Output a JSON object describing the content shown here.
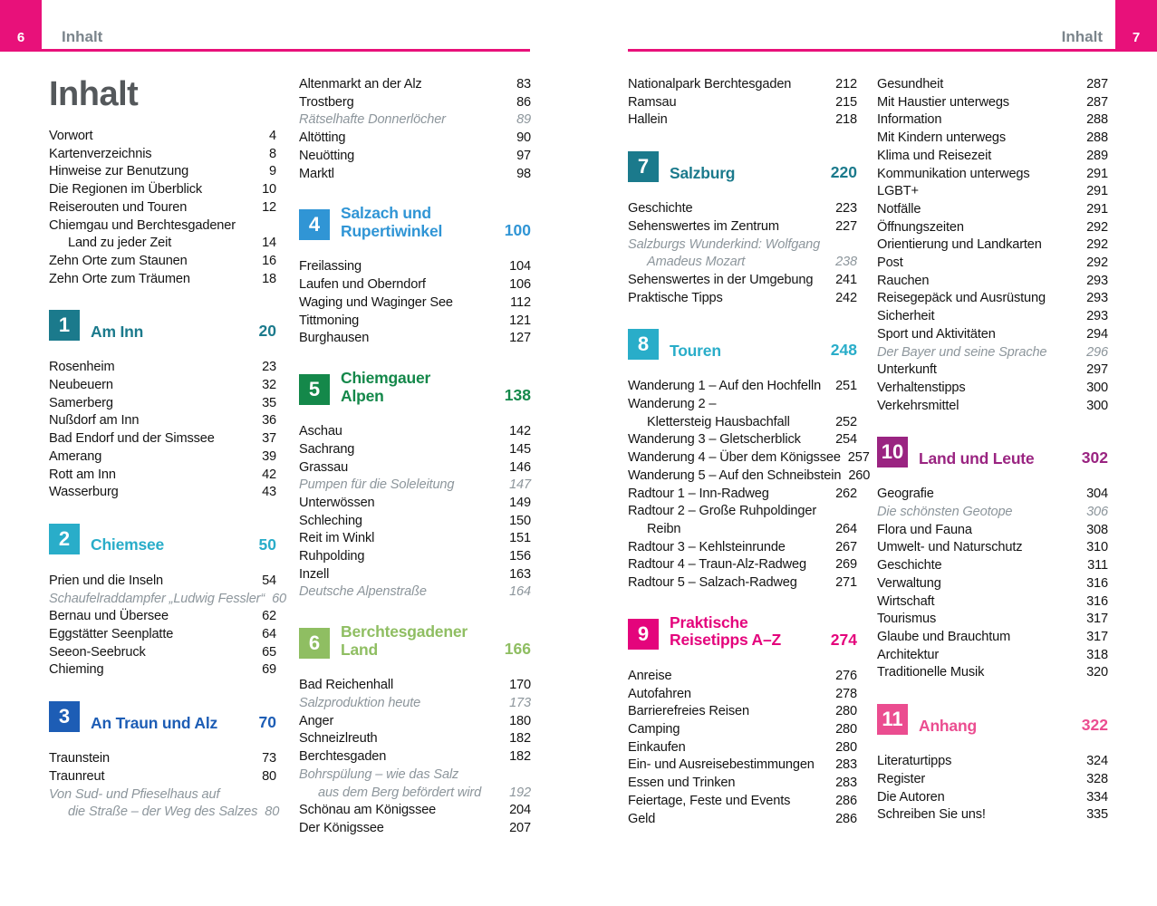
{
  "colors": {
    "accent": "#e8117a",
    "title_gray": "#54585b",
    "header_label_gray": "#7b858c",
    "body_text": "#141414",
    "muted_italic": "#8d969c"
  },
  "header": {
    "left": {
      "page_number": "6",
      "label": "Inhalt"
    },
    "right": {
      "page_number": "7",
      "label": "Inhalt"
    }
  },
  "title": "Inhalt",
  "columns": [
    {
      "blocks": [
        {
          "kind": "title",
          "text": "Inhalt"
        },
        {
          "kind": "entries",
          "rows": [
            {
              "label": "Vorwort",
              "page": "4"
            },
            {
              "label": "Kartenverzeichnis",
              "page": "8"
            },
            {
              "label": "Hinweise zur Benutzung",
              "page": "9"
            },
            {
              "label": "Die Regionen im Überblick",
              "page": "10"
            },
            {
              "label": "Reiserouten und Touren",
              "page": "12"
            },
            {
              "label": "Chiemgau und Berchtesgadener",
              "page": ""
            },
            {
              "label": "Land zu jeder Zeit",
              "page": "14",
              "indent": true
            },
            {
              "label": "Zehn Orte zum Staunen",
              "page": "16"
            },
            {
              "label": "Zehn Orte zum Träumen",
              "page": "18"
            }
          ]
        },
        {
          "kind": "chapter",
          "num": "1",
          "lines": [
            "Am Inn"
          ],
          "page": "20",
          "color": "#1b7a8c"
        },
        {
          "kind": "entries",
          "rows": [
            {
              "label": "Rosenheim",
              "page": "23"
            },
            {
              "label": "Neubeuern",
              "page": "32"
            },
            {
              "label": "Samerberg",
              "page": "35"
            },
            {
              "label": "Nußdorf am Inn",
              "page": "36"
            },
            {
              "label": "Bad Endorf und der Simssee",
              "page": "37"
            },
            {
              "label": "Amerang",
              "page": "39"
            },
            {
              "label": "Rott am Inn",
              "page": "42"
            },
            {
              "label": "Wasserburg",
              "page": "43"
            }
          ]
        },
        {
          "kind": "chapter",
          "num": "2",
          "lines": [
            "Chiemsee"
          ],
          "page": "50",
          "color": "#29adc9"
        },
        {
          "kind": "entries",
          "rows": [
            {
              "label": "Prien und die Inseln",
              "page": "54"
            },
            {
              "label": "Schaufelraddampfer „Ludwig Fessler“",
              "page": "60",
              "italic": true
            },
            {
              "label": "Bernau und Übersee",
              "page": "62"
            },
            {
              "label": "Eggstätter Seenplatte",
              "page": "64"
            },
            {
              "label": "Seeon-Seebruck",
              "page": "65"
            },
            {
              "label": "Chieming",
              "page": "69"
            }
          ]
        },
        {
          "kind": "chapter",
          "num": "3",
          "lines": [
            "An Traun und Alz"
          ],
          "page": "70",
          "color": "#1d5db5"
        },
        {
          "kind": "entries",
          "rows": [
            {
              "label": "Traunstein",
              "page": "73"
            },
            {
              "label": "Traunreut",
              "page": "80"
            },
            {
              "label": "Von Sud- und Pfieselhaus auf",
              "page": "",
              "italic": true
            },
            {
              "label": "die Straße – der Weg des Salzes",
              "page": "80",
              "italic": true,
              "indent": true
            }
          ]
        }
      ]
    },
    {
      "blocks": [
        {
          "kind": "entries",
          "rows": [
            {
              "label": "Altenmarkt an der Alz",
              "page": "83"
            },
            {
              "label": "Trostberg",
              "page": "86"
            },
            {
              "label": "Rätselhafte Donnerlöcher",
              "page": "89",
              "italic": true
            },
            {
              "label": "Altötting",
              "page": "90"
            },
            {
              "label": "Neuötting",
              "page": "97"
            },
            {
              "label": "Marktl",
              "page": "98"
            }
          ]
        },
        {
          "kind": "chapter",
          "num": "4",
          "lines": [
            "Salzach und",
            "Rupertiwinkel"
          ],
          "page": "100",
          "color": "#3095d5"
        },
        {
          "kind": "entries",
          "rows": [
            {
              "label": "Freilassing",
              "page": "104"
            },
            {
              "label": "Laufen und Oberndorf",
              "page": "106"
            },
            {
              "label": "Waging und Waginger See",
              "page": "112"
            },
            {
              "label": "Tittmoning",
              "page": "121"
            },
            {
              "label": "Burghausen",
              "page": "127"
            }
          ]
        },
        {
          "kind": "chapter",
          "num": "5",
          "lines": [
            "Chiemgauer",
            "Alpen"
          ],
          "page": "138",
          "color": "#14884a"
        },
        {
          "kind": "entries",
          "rows": [
            {
              "label": "Aschau",
              "page": "142"
            },
            {
              "label": "Sachrang",
              "page": "145"
            },
            {
              "label": "Grassau",
              "page": "146"
            },
            {
              "label": "Pumpen für die Soleleitung",
              "page": "147",
              "italic": true
            },
            {
              "label": "Unterwössen",
              "page": "149"
            },
            {
              "label": "Schleching",
              "page": "150"
            },
            {
              "label": "Reit im Winkl",
              "page": "151"
            },
            {
              "label": "Ruhpolding",
              "page": "156"
            },
            {
              "label": "Inzell",
              "page": "163"
            },
            {
              "label": "Deutsche Alpenstraße",
              "page": "164",
              "italic": true
            }
          ]
        },
        {
          "kind": "chapter",
          "num": "6",
          "lines": [
            "Berchtesgadener",
            "Land"
          ],
          "page": "166",
          "color": "#8fbe62"
        },
        {
          "kind": "entries",
          "rows": [
            {
              "label": "Bad Reichenhall",
              "page": "170"
            },
            {
              "label": "Salzproduktion heute",
              "page": "173",
              "italic": true
            },
            {
              "label": "Anger",
              "page": "180"
            },
            {
              "label": "Schneizlreuth",
              "page": "182"
            },
            {
              "label": "Berchtesgaden",
              "page": "182"
            },
            {
              "label": "Bohrspülung – wie das Salz",
              "page": "",
              "italic": true
            },
            {
              "label": "aus dem Berg befördert wird",
              "page": "192",
              "italic": true,
              "indent": true
            },
            {
              "label": "Schönau am Königssee",
              "page": "204"
            },
            {
              "label": "Der Königssee",
              "page": "207"
            }
          ]
        }
      ]
    },
    {
      "blocks": [
        {
          "kind": "entries",
          "rows": [
            {
              "label": "Nationalpark Berchtesgaden",
              "page": "212"
            },
            {
              "label": "Ramsau",
              "page": "215"
            },
            {
              "label": "Hallein",
              "page": "218"
            }
          ]
        },
        {
          "kind": "chapter",
          "num": "7",
          "lines": [
            "Salzburg"
          ],
          "page": "220",
          "color": "#1b7a8c"
        },
        {
          "kind": "entries",
          "rows": [
            {
              "label": "Geschichte",
              "page": "223"
            },
            {
              "label": "Sehenswertes im Zentrum",
              "page": "227"
            },
            {
              "label": "Salzburgs Wunderkind: Wolfgang",
              "page": "",
              "italic": true
            },
            {
              "label": "Amadeus Mozart",
              "page": "238",
              "italic": true,
              "indent": true
            },
            {
              "label": "Sehenswertes in der Umgebung",
              "page": "241"
            },
            {
              "label": "Praktische Tipps",
              "page": "242"
            }
          ]
        },
        {
          "kind": "chapter",
          "num": "8",
          "lines": [
            "Touren"
          ],
          "page": "248",
          "color": "#29adc9"
        },
        {
          "kind": "entries",
          "rows": [
            {
              "label": "Wanderung 1 – Auf den Hochfelln",
              "page": "251"
            },
            {
              "label": "Wanderung 2 –",
              "page": ""
            },
            {
              "label": "Klettersteig Hausbachfall",
              "page": "252",
              "indent": true
            },
            {
              "label": "Wanderung 3 – Gletscherblick",
              "page": "254"
            },
            {
              "label": "Wanderung 4 – Über dem Königssee",
              "page": "257"
            },
            {
              "label": "Wanderung 5 – Auf den Schneibstein",
              "page": "260"
            },
            {
              "label": "Radtour 1 – Inn-Radweg",
              "page": "262"
            },
            {
              "label": "Radtour 2 – Große Ruhpoldinger",
              "page": ""
            },
            {
              "label": "Reibn",
              "page": "264",
              "indent": true
            },
            {
              "label": "Radtour 3 – Kehlsteinrunde",
              "page": "267"
            },
            {
              "label": "Radtour 4 – Traun-Alz-Radweg",
              "page": "269"
            },
            {
              "label": "Radtour 5 – Salzach-Radweg",
              "page": "271"
            }
          ]
        },
        {
          "kind": "chapter",
          "num": "9",
          "lines": [
            "Praktische",
            "Reisetipps A–Z"
          ],
          "page": "274",
          "color": "#e4047c"
        },
        {
          "kind": "entries",
          "rows": [
            {
              "label": "Anreise",
              "page": "276"
            },
            {
              "label": "Autofahren",
              "page": "278"
            },
            {
              "label": "Barrierefreies Reisen",
              "page": "280"
            },
            {
              "label": "Camping",
              "page": "280"
            },
            {
              "label": "Einkaufen",
              "page": "280"
            },
            {
              "label": "Ein- und Ausreisebestimmungen",
              "page": "283"
            },
            {
              "label": "Essen und Trinken",
              "page": "283"
            },
            {
              "label": "Feiertage, Feste und Events",
              "page": "286"
            },
            {
              "label": "Geld",
              "page": "286"
            }
          ]
        }
      ]
    },
    {
      "blocks": [
        {
          "kind": "entries",
          "rows": [
            {
              "label": "Gesundheit",
              "page": "287"
            },
            {
              "label": "Mit Haustier unterwegs",
              "page": "287"
            },
            {
              "label": "Information",
              "page": "288"
            },
            {
              "label": "Mit Kindern unterwegs",
              "page": "288"
            },
            {
              "label": "Klima und Reisezeit",
              "page": "289"
            },
            {
              "label": "Kommunikation unterwegs",
              "page": "291"
            },
            {
              "label": "LGBT+",
              "page": "291"
            },
            {
              "label": "Notfälle",
              "page": "291"
            },
            {
              "label": "Öffnungszeiten",
              "page": "292"
            },
            {
              "label": "Orientierung und Landkarten",
              "page": "292"
            },
            {
              "label": "Post",
              "page": "292"
            },
            {
              "label": "Rauchen",
              "page": "293"
            },
            {
              "label": "Reisegepäck und Ausrüstung",
              "page": "293"
            },
            {
              "label": "Sicherheit",
              "page": "293"
            },
            {
              "label": "Sport und Aktivitäten",
              "page": "294"
            },
            {
              "label": "Der Bayer und seine Sprache",
              "page": "296",
              "italic": true
            },
            {
              "label": "Unterkunft",
              "page": "297"
            },
            {
              "label": "Verhaltenstipps",
              "page": "300"
            },
            {
              "label": "Verkehrsmittel",
              "page": "300"
            }
          ]
        },
        {
          "kind": "chapter",
          "num": "10",
          "lines": [
            "Land und Leute"
          ],
          "page": "302",
          "color": "#9a2481"
        },
        {
          "kind": "entries",
          "rows": [
            {
              "label": "Geografie",
              "page": "304"
            },
            {
              "label": "Die schönsten Geotope",
              "page": "306",
              "italic": true
            },
            {
              "label": "Flora und Fauna",
              "page": "308"
            },
            {
              "label": "Umwelt- und Naturschutz",
              "page": "310"
            },
            {
              "label": "Geschichte",
              "page": "311"
            },
            {
              "label": "Verwaltung",
              "page": "316"
            },
            {
              "label": "Wirtschaft",
              "page": "316"
            },
            {
              "label": "Tourismus",
              "page": "317"
            },
            {
              "label": "Glaube und Brauchtum",
              "page": "317"
            },
            {
              "label": "Architektur",
              "page": "318"
            },
            {
              "label": "Traditionelle Musik",
              "page": "320"
            }
          ]
        },
        {
          "kind": "chapter",
          "num": "11",
          "lines": [
            "Anhang"
          ],
          "page": "322",
          "color": "#eb4d90"
        },
        {
          "kind": "entries",
          "rows": [
            {
              "label": "Literaturtipps",
              "page": "324"
            },
            {
              "label": "Register",
              "page": "328"
            },
            {
              "label": "Die Autoren",
              "page": "334"
            },
            {
              "label": "Schreiben Sie uns!",
              "page": "335"
            }
          ]
        }
      ]
    }
  ]
}
